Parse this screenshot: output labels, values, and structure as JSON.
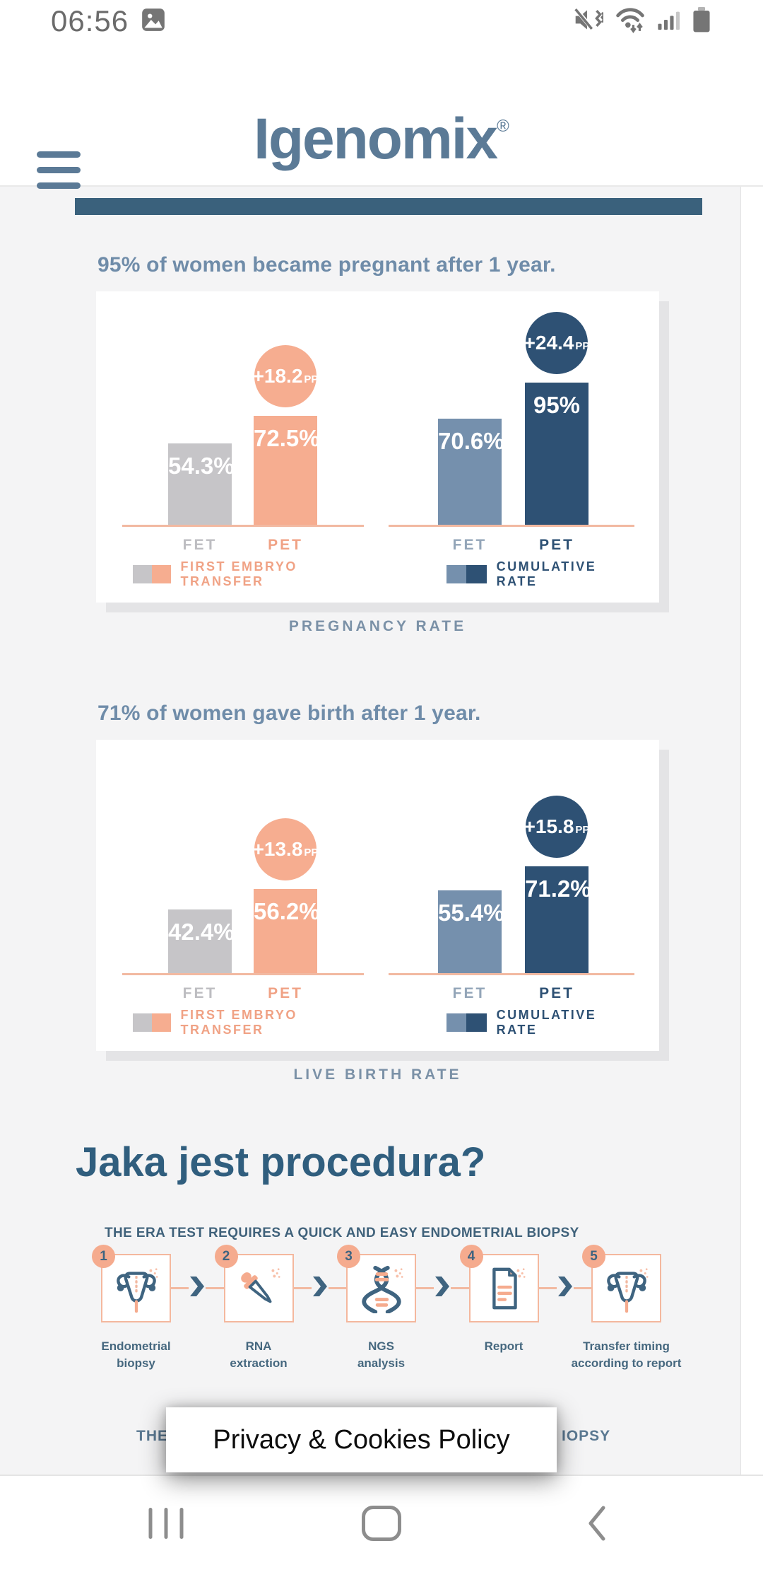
{
  "status_bar": {
    "time": "06:56",
    "icons": [
      "gallery-icon",
      "mute-vibrate-icon",
      "wifi-traffic-icon",
      "signal-icon",
      "battery-icon"
    ]
  },
  "header": {
    "logo": "Igenomix",
    "registered": "®",
    "menu_icon": "hamburger-icon"
  },
  "chart_data": [
    {
      "type": "bar",
      "annotation": "95% of women became pregnant after 1 year.",
      "title": "PREGNANCY RATE",
      "categories": [
        "FET",
        "PET"
      ],
      "unit": "%",
      "ylim": [
        0,
        100
      ],
      "grid": false,
      "legend_position": "bottom",
      "series": [
        {
          "name": "FIRST EMBRYO TRANSFER",
          "values": [
            54.3,
            72.5
          ],
          "value_labels": [
            "54.3%",
            "72.5%"
          ],
          "delta": "+18.2",
          "delta_suffix": "PP",
          "bar_colors": [
            "#c6c5c8",
            "#f6ad90"
          ],
          "category_label_colors": [
            "#bdbdc1",
            "#f0a285"
          ],
          "legend_color": "#f0a285"
        },
        {
          "name": "CUMULATIVE RATE",
          "values": [
            70.6,
            95
          ],
          "value_labels": [
            "70.6%",
            "95%"
          ],
          "delta": "+24.4",
          "delta_suffix": "PP",
          "bar_colors": [
            "#7590ad",
            "#2e5174"
          ],
          "category_label_colors": [
            "#93a5b8",
            "#2e5174"
          ],
          "legend_color": "#2e5174"
        }
      ]
    },
    {
      "type": "bar",
      "annotation": "71% of women gave birth after 1 year.",
      "title": "LIVE BIRTH RATE",
      "categories": [
        "FET",
        "PET"
      ],
      "unit": "%",
      "ylim": [
        0,
        100
      ],
      "grid": false,
      "legend_position": "bottom",
      "series": [
        {
          "name": "FIRST EMBRYO TRANSFER",
          "values": [
            42.4,
            56.2
          ],
          "value_labels": [
            "42.4%",
            "56.2%"
          ],
          "delta": "+13.8",
          "delta_suffix": "PP",
          "bar_colors": [
            "#c6c5c8",
            "#f6ad90"
          ],
          "category_label_colors": [
            "#bdbdc1",
            "#f0a285"
          ],
          "legend_color": "#f0a285"
        },
        {
          "name": "CUMULATIVE RATE",
          "values": [
            55.4,
            71.2
          ],
          "value_labels": [
            "55.4%",
            "71.2%"
          ],
          "delta": "+15.8",
          "delta_suffix": "PP",
          "bar_colors": [
            "#7590ad",
            "#2e5174"
          ],
          "category_label_colors": [
            "#93a5b8",
            "#2e5174"
          ],
          "legend_color": "#2e5174"
        }
      ]
    }
  ],
  "procedure": {
    "title": "Jaka jest procedura?",
    "subtitle": "THE ERA TEST REQUIRES A QUICK AND EASY ENDOMETRIAL BIOPSY",
    "steps": [
      {
        "num": "1",
        "label": "Endometrial\nbiopsy",
        "icon": "uterus-icon"
      },
      {
        "num": "2",
        "label": "RNA\nextraction",
        "icon": "dropper-icon"
      },
      {
        "num": "3",
        "label": "NGS\nanalysis",
        "icon": "dna-icon"
      },
      {
        "num": "4",
        "label": "Report",
        "icon": "report-icon"
      },
      {
        "num": "5",
        "label": "Transfer timing\naccording to report",
        "icon": "uterus-icon"
      }
    ],
    "obscured_text": {
      "left": "THE",
      "right": "IOPSY"
    }
  },
  "cookie_banner": {
    "label": "Privacy & Cookies Policy"
  },
  "bottom_nav": {
    "icons": [
      "recents-icon",
      "home-icon",
      "back-icon"
    ]
  },
  "colors": {
    "salmon": "#f5ab8e",
    "salmon_light": "#f2b9a1",
    "navy": "#2e5174",
    "slate_bar": "#7590ad",
    "gray_bar": "#c6c5c8",
    "heading_slate": "#6f8ca9",
    "caption_slate": "#7b91a7",
    "title_navy": "#305e7e",
    "icon_navy": "#3f6480",
    "logo_slate": "#5b7a96",
    "divider_navy": "#3a617c",
    "page_bg": "#f4f4f5",
    "status_gray": "#757575",
    "nav_gray": "#8d8d8d"
  }
}
